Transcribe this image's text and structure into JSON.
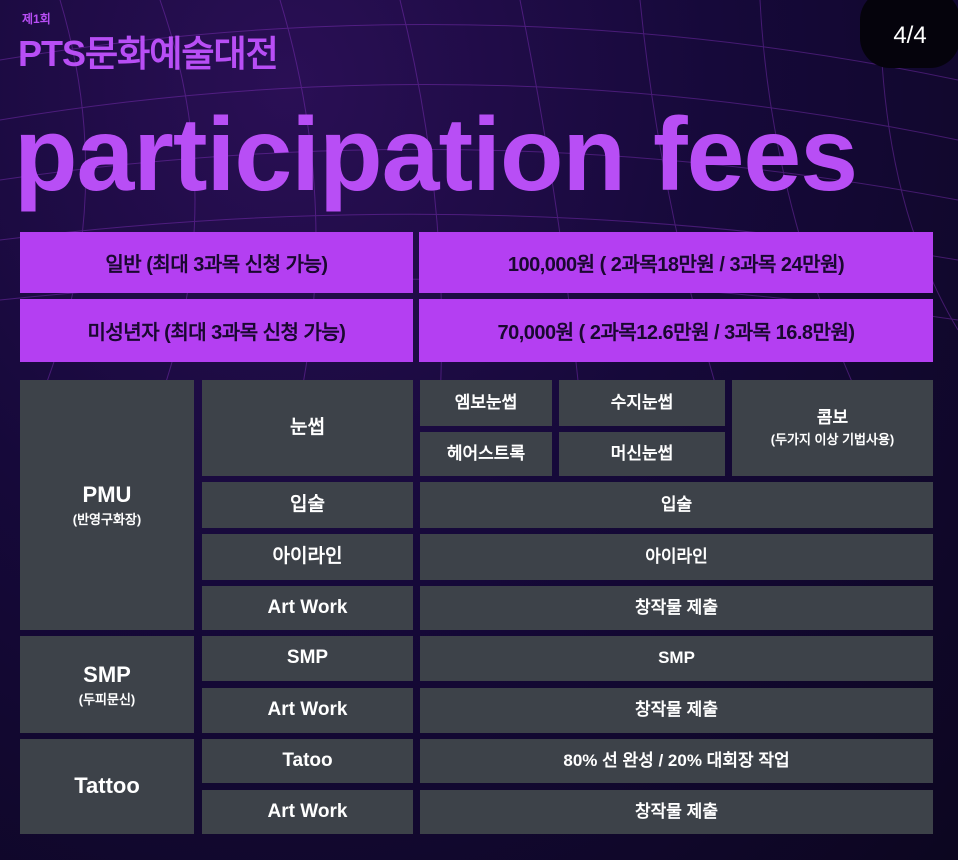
{
  "header": {
    "edition": "제1회",
    "event": "PTS문화예술대전",
    "title": "participation fees",
    "page_indicator": "4/4"
  },
  "fees": [
    {
      "category": "일반 (최대 3과목 신청 가능)",
      "price": "100,000원 ( 2과목18만원 / 3과목 24만원)"
    },
    {
      "category": "미성년자 (최대 3과목 신청 가능)",
      "price": "70,000원 ( 2과목12.6만원 / 3과목 16.8만원)"
    }
  ],
  "groups": {
    "pmu": {
      "name": "PMU",
      "sub": "(반영구화장)"
    },
    "smp": {
      "name": "SMP",
      "sub": "(두피문신)"
    },
    "tattoo": {
      "name": "Tattoo"
    }
  },
  "eyebrow": {
    "label": "눈썹",
    "items": [
      "엠보눈썹",
      "수지눈썹",
      "헤어스트록",
      "머신눈썹"
    ],
    "combo": "콤보",
    "combo_sub": "(두가지 이상 기법사용)"
  },
  "rows": [
    {
      "label": "입술",
      "detail": "입술"
    },
    {
      "label": "아이라인",
      "detail": "아이라인"
    },
    {
      "label": "Art Work",
      "detail": "창작물 제출"
    },
    {
      "label": "SMP",
      "detail": "SMP"
    },
    {
      "label": "Art Work",
      "detail": "창작물 제출"
    },
    {
      "label": "Tatoo",
      "detail": "80% 선 완성 / 20% 대회장 작업"
    },
    {
      "label": "Art Work",
      "detail": "창작물 제출"
    }
  ],
  "colors": {
    "accent": "#b43ff2",
    "cell": "#3d4249",
    "background": "#120826"
  }
}
